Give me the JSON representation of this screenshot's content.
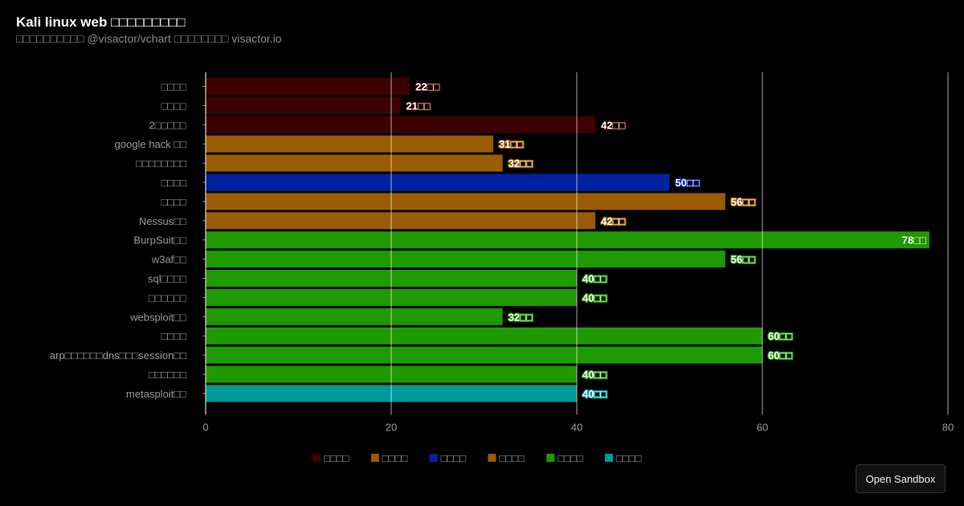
{
  "header": {
    "title": "Kali linux web □□□□□□□□□",
    "subtitle": "□□□□□□□□□□ @visactor/vchart □□□□□□□□ visactor.io"
  },
  "sandbox_label": "Open Sandbox",
  "chart_data": {
    "type": "bar",
    "orientation": "horizontal",
    "title": "",
    "xlim": [
      0,
      80
    ],
    "x_ticks": [
      "0",
      "20",
      "40",
      "60",
      "80"
    ],
    "grid": true,
    "legend_position": "bottom",
    "categories": [
      "□□□□",
      "□□□□",
      "2□□□□□",
      "google hack □□",
      "□□□□□□□□",
      "□□□□",
      "□□□□",
      "Nessus□□",
      "BurpSuit□□",
      "w3af□□",
      "sql□□□□",
      "□□□□□□",
      "websploit□□",
      "□□□□",
      "arp□□□□□□dns□□□session□□",
      "□□□□□□",
      "metasploit□□"
    ],
    "values": [
      22,
      21,
      42,
      31,
      32,
      50,
      56,
      42,
      78,
      56,
      40,
      40,
      32,
      60,
      60,
      40,
      40
    ],
    "data_labels": [
      "22□□",
      "21□□",
      "42□□",
      "31□□",
      "32□□",
      "50□□",
      "56□□",
      "42□□",
      "78□□",
      "56□□",
      "40□□",
      "40□□",
      "32□□",
      "60□□",
      "60□□",
      "40□□",
      "40□□"
    ],
    "groups": [
      0,
      0,
      0,
      1,
      1,
      2,
      3,
      3,
      4,
      4,
      4,
      4,
      4,
      4,
      4,
      4,
      5
    ],
    "legend": [
      {
        "label": "□□□□",
        "color": "#3d0000"
      },
      {
        "label": "□□□□",
        "color": "#995c00"
      },
      {
        "label": "□□□□",
        "color": "#0022a0"
      },
      {
        "label": "□□□□",
        "color": "#995c00"
      },
      {
        "label": "□□□□",
        "color": "#1f9900"
      },
      {
        "label": "□□□□",
        "color": "#009999"
      }
    ]
  }
}
